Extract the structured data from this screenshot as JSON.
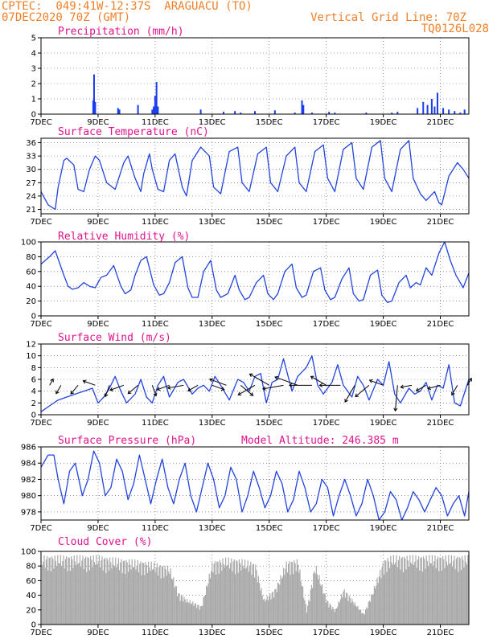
{
  "header": {
    "line1": "CPTEC:  049:41W-12:37S  ARAGUACU (TO)",
    "line2": "07DEC2020 70Z (GMT)",
    "grid_note": "Vertical Grid Line: 70Z",
    "code": "TQ0126L028",
    "color": "#f0802a"
  },
  "colors": {
    "line": "#2244dd",
    "bar": "#1a3cf0",
    "cloud": "#aaaaaa",
    "title": "#e0148c"
  },
  "x_axis": {
    "labels": [
      "7DEC",
      "9DEC",
      "11DEC",
      "13DEC",
      "15DEC",
      "17DEC",
      "19DEC",
      "21DEC"
    ],
    "label_days": [
      0,
      2,
      4,
      6,
      8,
      10,
      12,
      14
    ],
    "range_days": [
      0,
      15
    ]
  },
  "chart_data": [
    {
      "type": "bar",
      "title": "Precipitation (mm/h)",
      "ylim": [
        0,
        5
      ],
      "yticks": [
        0,
        1,
        2,
        3,
        4,
        5
      ],
      "x_days": [
        1.83,
        1.86,
        1.9,
        2.7,
        2.75,
        3.4,
        3.9,
        3.95,
        4.0,
        4.05,
        4.1,
        5.6,
        6.4,
        6.8,
        7.0,
        7.5,
        8.2,
        8.9,
        9.15,
        9.2,
        9.5,
        10.1,
        10.3,
        11.4,
        12.3,
        12.5,
        13.2,
        13.4,
        13.55,
        13.7,
        13.8,
        13.9,
        14.1,
        14.3,
        14.5,
        14.7,
        14.85
      ],
      "values": [
        0.9,
        2.6,
        0.8,
        0.4,
        0.3,
        0.6,
        0.3,
        0.5,
        1.2,
        2.1,
        0.5,
        0.3,
        0.15,
        0.2,
        0.1,
        0.2,
        0.25,
        0.1,
        0.9,
        0.6,
        0.1,
        0.15,
        0.1,
        0.1,
        0.1,
        0.15,
        0.4,
        0.8,
        0.6,
        1.0,
        0.5,
        1.4,
        0.4,
        0.3,
        0.2,
        0.1,
        0.3
      ]
    },
    {
      "type": "line",
      "title": "Surface Temperature (nC)",
      "ylim": [
        20,
        37
      ],
      "yticks": [
        21,
        24,
        27,
        30,
        33,
        36
      ],
      "x_days": [
        0.0,
        0.25,
        0.5,
        0.6,
        0.8,
        0.9,
        1.15,
        1.3,
        1.5,
        1.7,
        1.9,
        2.05,
        2.3,
        2.6,
        2.9,
        3.05,
        3.3,
        3.5,
        3.6,
        3.8,
        3.9,
        4.1,
        4.3,
        4.5,
        4.7,
        4.95,
        5.1,
        5.3,
        5.6,
        5.9,
        6.05,
        6.3,
        6.6,
        6.9,
        7.05,
        7.3,
        7.6,
        7.9,
        8.05,
        8.3,
        8.6,
        8.9,
        9.05,
        9.3,
        9.6,
        9.9,
        10.05,
        10.3,
        10.6,
        10.9,
        11.05,
        11.3,
        11.6,
        11.9,
        12.05,
        12.3,
        12.6,
        12.9,
        13.05,
        13.3,
        13.5,
        13.8,
        13.95,
        14.05,
        14.3,
        14.6,
        14.8,
        15.0
      ],
      "values": [
        25.0,
        22.0,
        21.0,
        26.0,
        32.0,
        32.5,
        31.0,
        25.5,
        25.0,
        30.0,
        33.0,
        32.0,
        27.0,
        25.5,
        31.5,
        33.0,
        28.0,
        25.0,
        29.0,
        33.5,
        30.0,
        25.5,
        25.0,
        32.0,
        33.5,
        26.0,
        24.0,
        32.0,
        35.0,
        33.0,
        26.0,
        24.5,
        34.0,
        35.0,
        27.0,
        25.0,
        33.5,
        35.0,
        27.0,
        25.0,
        33.0,
        35.0,
        27.0,
        25.0,
        34.0,
        35.5,
        28.0,
        25.0,
        34.5,
        36.0,
        28.0,
        25.5,
        35.0,
        36.5,
        28.0,
        25.0,
        34.5,
        36.5,
        28.0,
        24.5,
        23.0,
        25.0,
        22.5,
        22.0,
        28.5,
        31.5,
        30.0,
        28.0
      ]
    },
    {
      "type": "line",
      "title": "Relative Humidity (%)",
      "ylim": [
        0,
        100
      ],
      "yticks": [
        0,
        20,
        40,
        60,
        80,
        100
      ],
      "x_days": [
        0.0,
        0.3,
        0.5,
        0.8,
        0.95,
        1.1,
        1.3,
        1.5,
        1.7,
        1.9,
        2.1,
        2.3,
        2.55,
        2.8,
        2.95,
        3.15,
        3.3,
        3.5,
        3.7,
        3.95,
        4.15,
        4.3,
        4.5,
        4.7,
        4.95,
        5.15,
        5.3,
        5.5,
        5.7,
        5.95,
        6.15,
        6.3,
        6.55,
        6.8,
        6.95,
        7.15,
        7.3,
        7.55,
        7.8,
        7.95,
        8.15,
        8.3,
        8.55,
        8.8,
        8.95,
        9.15,
        9.3,
        9.55,
        9.8,
        9.95,
        10.15,
        10.3,
        10.55,
        10.8,
        10.95,
        11.15,
        11.3,
        11.55,
        11.8,
        11.95,
        12.15,
        12.3,
        12.55,
        12.8,
        12.95,
        13.15,
        13.3,
        13.5,
        13.7,
        13.95,
        14.15,
        14.35,
        14.55,
        14.8,
        15.0
      ],
      "values": [
        70.0,
        80.0,
        88.0,
        55.0,
        40.0,
        36.0,
        38.0,
        45.0,
        40.0,
        38.0,
        52.0,
        55.0,
        68.0,
        40.0,
        30.0,
        35.0,
        55.0,
        75.0,
        80.0,
        42.0,
        28.0,
        30.0,
        45.0,
        72.0,
        80.0,
        38.0,
        25.0,
        25.0,
        60.0,
        75.0,
        35.0,
        25.0,
        30.0,
        55.0,
        35.0,
        22.0,
        25.0,
        45.0,
        55.0,
        30.0,
        22.0,
        30.0,
        60.0,
        70.0,
        38.0,
        25.0,
        28.0,
        60.0,
        65.0,
        35.0,
        22.0,
        25.0,
        50.0,
        65.0,
        30.0,
        20.0,
        22.0,
        55.0,
        62.0,
        28.0,
        18.0,
        20.0,
        45.0,
        55.0,
        38.0,
        45.0,
        42.0,
        65.0,
        55.0,
        85.0,
        100.0,
        75.0,
        55.0,
        38.0,
        58.0
      ]
    },
    {
      "type": "line",
      "title": "Surface Wind (m/s)",
      "ylim": [
        0,
        12
      ],
      "yticks": [
        0,
        2,
        4,
        6,
        8,
        10,
        12
      ],
      "x_days": [
        0.0,
        0.3,
        0.6,
        0.9,
        1.2,
        1.5,
        1.8,
        2.0,
        2.2,
        2.4,
        2.6,
        2.8,
        3.0,
        3.3,
        3.5,
        3.7,
        3.9,
        4.1,
        4.3,
        4.5,
        4.8,
        5.0,
        5.3,
        5.5,
        5.7,
        5.9,
        6.1,
        6.3,
        6.6,
        6.9,
        7.1,
        7.3,
        7.5,
        7.7,
        7.9,
        8.1,
        8.3,
        8.5,
        8.8,
        9.0,
        9.3,
        9.5,
        9.7,
        9.9,
        10.2,
        10.4,
        10.6,
        10.9,
        11.1,
        11.3,
        11.5,
        11.8,
        12.0,
        12.2,
        12.4,
        12.6,
        12.9,
        13.1,
        13.3,
        13.5,
        13.7,
        13.9,
        14.1,
        14.3,
        14.5,
        14.7,
        15.0
      ],
      "values": [
        0.5,
        1.5,
        2.5,
        3.0,
        3.5,
        4.0,
        4.5,
        2.0,
        3.0,
        4.5,
        6.5,
        4.0,
        2.0,
        3.5,
        6.0,
        3.0,
        2.0,
        5.0,
        6.5,
        3.0,
        5.5,
        6.0,
        3.5,
        4.5,
        5.0,
        4.0,
        6.5,
        5.0,
        2.5,
        6.0,
        5.5,
        4.0,
        6.5,
        7.0,
        2.0,
        5.5,
        6.0,
        9.5,
        4.0,
        6.5,
        8.0,
        10.0,
        5.0,
        3.5,
        5.5,
        8.5,
        5.0,
        3.0,
        6.5,
        5.0,
        2.5,
        6.0,
        5.0,
        9.0,
        3.5,
        2.0,
        4.5,
        3.5,
        4.0,
        5.5,
        2.5,
        5.0,
        4.5,
        8.5,
        2.0,
        1.5,
        6.0
      ],
      "wind_barbs": [
        {
          "day": 0.3,
          "deg": -60,
          "len": 9
        },
        {
          "day": 0.7,
          "deg": 120,
          "len": 12
        },
        {
          "day": 1.3,
          "deg": 130,
          "len": 14
        },
        {
          "day": 1.9,
          "deg": 200,
          "len": 16
        },
        {
          "day": 2.4,
          "deg": 110,
          "len": 15
        },
        {
          "day": 2.9,
          "deg": 160,
          "len": 18
        },
        {
          "day": 3.4,
          "deg": 140,
          "len": 16
        },
        {
          "day": 3.9,
          "deg": 70,
          "len": 14
        },
        {
          "day": 4.5,
          "deg": 160,
          "len": 16
        },
        {
          "day": 5.0,
          "deg": 170,
          "len": 20
        },
        {
          "day": 5.5,
          "deg": 150,
          "len": 14
        },
        {
          "day": 6.0,
          "deg": 20,
          "len": 16
        },
        {
          "day": 6.5,
          "deg": 200,
          "len": 22
        },
        {
          "day": 7.0,
          "deg": 40,
          "len": 20
        },
        {
          "day": 7.5,
          "deg": 150,
          "len": 24
        },
        {
          "day": 8.0,
          "deg": 210,
          "len": 28
        },
        {
          "day": 8.5,
          "deg": 170,
          "len": 26
        },
        {
          "day": 9.0,
          "deg": 200,
          "len": 30
        },
        {
          "day": 9.5,
          "deg": 180,
          "len": 28
        },
        {
          "day": 10.0,
          "deg": 210,
          "len": 22
        },
        {
          "day": 10.5,
          "deg": 180,
          "len": 26
        },
        {
          "day": 11.0,
          "deg": 120,
          "len": 24
        },
        {
          "day": 11.5,
          "deg": 140,
          "len": 22
        },
        {
          "day": 12.0,
          "deg": 200,
          "len": 18
        },
        {
          "day": 12.5,
          "deg": 95,
          "len": 32
        },
        {
          "day": 13.0,
          "deg": 170,
          "len": 14
        },
        {
          "day": 13.5,
          "deg": 150,
          "len": 14
        },
        {
          "day": 14.0,
          "deg": 165,
          "len": 16
        },
        {
          "day": 14.6,
          "deg": 120,
          "len": 14
        },
        {
          "day": 14.95,
          "deg": -60,
          "len": 10
        }
      ]
    },
    {
      "type": "line",
      "title": "Surface Pressure (hPa)",
      "subtitle": "Model Altitude: 246.385 m",
      "ylim": [
        977,
        986
      ],
      "yticks": [
        978,
        980,
        982,
        984,
        986
      ],
      "x_days": [
        0.0,
        0.25,
        0.45,
        0.6,
        0.8,
        1.0,
        1.2,
        1.45,
        1.65,
        1.85,
        2.05,
        2.25,
        2.45,
        2.65,
        2.85,
        3.05,
        3.25,
        3.45,
        3.65,
        3.85,
        4.05,
        4.25,
        4.45,
        4.65,
        4.85,
        5.05,
        5.25,
        5.45,
        5.65,
        5.85,
        6.05,
        6.25,
        6.45,
        6.65,
        6.85,
        7.05,
        7.25,
        7.45,
        7.65,
        7.85,
        8.05,
        8.25,
        8.45,
        8.65,
        8.85,
        9.05,
        9.25,
        9.45,
        9.65,
        9.85,
        10.05,
        10.25,
        10.45,
        10.65,
        10.85,
        11.05,
        11.25,
        11.45,
        11.65,
        11.85,
        12.05,
        12.25,
        12.45,
        12.65,
        12.85,
        13.05,
        13.25,
        13.45,
        13.65,
        13.85,
        14.05,
        14.25,
        14.45,
        14.65,
        14.85,
        15.0
      ],
      "values": [
        983.5,
        985.0,
        985.0,
        982.0,
        979.0,
        983.0,
        984.0,
        980.0,
        982.0,
        985.5,
        984.0,
        980.0,
        981.0,
        984.5,
        983.0,
        979.5,
        981.5,
        985.0,
        982.0,
        979.0,
        982.0,
        984.5,
        981.0,
        979.0,
        982.0,
        984.0,
        980.0,
        978.0,
        981.0,
        984.0,
        982.0,
        978.5,
        980.0,
        983.5,
        982.0,
        978.0,
        980.0,
        983.0,
        981.0,
        978.5,
        980.0,
        983.0,
        981.5,
        978.0,
        979.5,
        983.0,
        981.0,
        978.0,
        979.0,
        982.0,
        981.0,
        977.5,
        980.0,
        982.0,
        980.0,
        977.5,
        979.0,
        982.0,
        980.0,
        977.0,
        978.0,
        980.5,
        979.5,
        977.0,
        978.5,
        980.5,
        979.5,
        978.0,
        979.5,
        981.0,
        980.0,
        977.5,
        979.0,
        980.0,
        977.5,
        980.5
      ]
    },
    {
      "type": "area",
      "title": "Cloud Cover (%)",
      "ylim": [
        0,
        100
      ],
      "yticks": [
        0,
        20,
        40,
        60,
        80,
        100
      ],
      "x_days": [
        0.0,
        0.5,
        1.0,
        1.5,
        2.0,
        2.5,
        3.0,
        3.5,
        4.0,
        4.5,
        4.8,
        5.1,
        5.4,
        5.6,
        6.0,
        6.5,
        7.0,
        7.5,
        7.8,
        8.2,
        8.6,
        9.0,
        9.3,
        9.6,
        10.0,
        10.3,
        10.6,
        11.0,
        11.3,
        11.6,
        12.0,
        12.3,
        12.6,
        13.0,
        13.5,
        14.0,
        14.5,
        14.8,
        15.0
      ],
      "values": [
        95,
        95,
        95,
        95,
        95,
        92,
        90,
        88,
        85,
        80,
        45,
        35,
        30,
        25,
        88,
        92,
        90,
        85,
        35,
        50,
        88,
        90,
        20,
        85,
        35,
        20,
        50,
        30,
        15,
        45,
        90,
        95,
        95,
        95,
        95,
        95,
        95,
        95,
        95
      ]
    }
  ]
}
